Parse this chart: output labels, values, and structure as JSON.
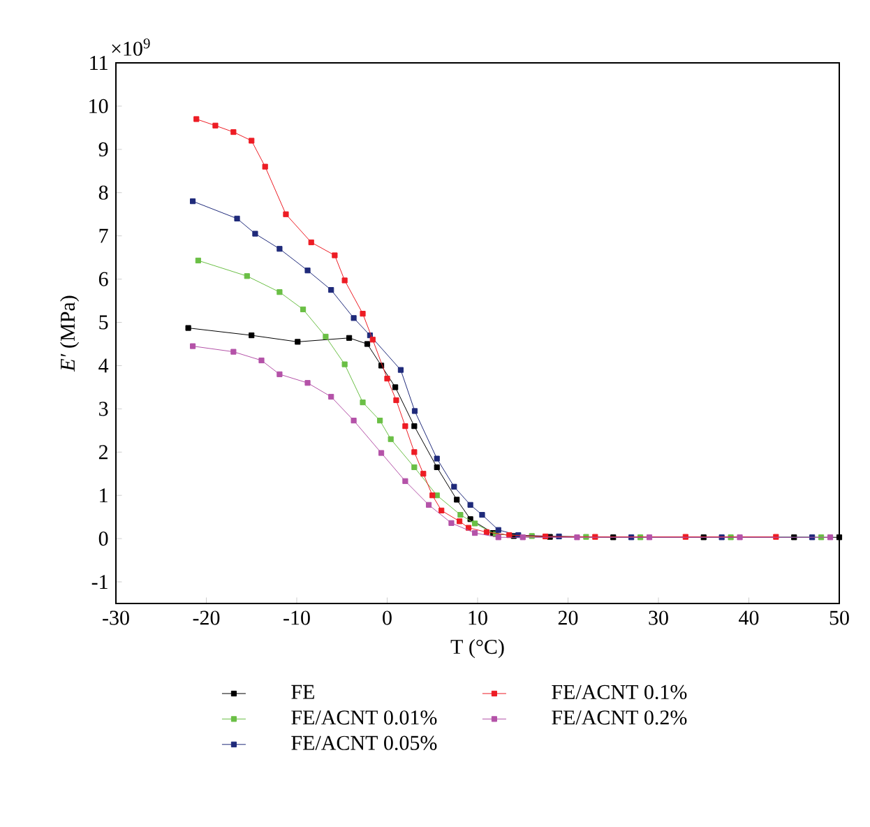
{
  "chart_data": {
    "type": "line",
    "xlabel": "T (°C)",
    "ylabel": "*E′* (MPa)",
    "annotations": [
      "×10$^{9}$"
    ],
    "xlim": [
      -30,
      50
    ],
    "ylim": [
      -1.5,
      11
    ],
    "xticks": [
      -30,
      -20,
      -10,
      0,
      10,
      20,
      30,
      40,
      50
    ],
    "yticks": [
      -1,
      0,
      1,
      2,
      3,
      4,
      5,
      6,
      7,
      8,
      9,
      10,
      11
    ],
    "legend": "bottom",
    "marker": "square",
    "line_style": "solid",
    "series": [
      {
        "name": "FE",
        "color": "#000000",
        "x": [
          -22,
          -15,
          -9.9,
          -4.2,
          -2.2,
          -0.65,
          0.9,
          3.0,
          5.5,
          7.7,
          9.2,
          11.7,
          14,
          18,
          25,
          35,
          45,
          50
        ],
        "values": [
          4.87,
          4.7,
          4.55,
          4.64,
          4.5,
          4.0,
          3.5,
          2.6,
          1.65,
          0.9,
          0.45,
          0.13,
          0.06,
          0.04,
          0.03,
          0.03,
          0.03,
          0.03
        ]
      },
      {
        "name": "FE/ACNT 0.01%",
        "color": "#6abf45",
        "x": [
          -20.9,
          -15.5,
          -11.9,
          -9.3,
          -6.8,
          -4.7,
          -2.7,
          -0.8,
          0.4,
          3.0,
          5.5,
          8.1,
          9.7,
          12,
          16,
          22,
          28,
          38,
          48
        ],
        "values": [
          6.43,
          6.07,
          5.7,
          5.3,
          4.67,
          4.03,
          3.15,
          2.73,
          2.3,
          1.65,
          1.0,
          0.55,
          0.35,
          0.1,
          0.06,
          0.04,
          0.03,
          0.03,
          0.03
        ]
      },
      {
        "name": "FE/ACNT 0.05%",
        "color": "#1f2a7a",
        "x": [
          -21.5,
          -16.6,
          -14.6,
          -11.9,
          -8.8,
          -6.2,
          -3.7,
          -1.9,
          1.5,
          3.05,
          5.5,
          7.4,
          9.2,
          10.5,
          12.3,
          14.5,
          19,
          27,
          37,
          47
        ],
        "values": [
          7.8,
          7.4,
          7.05,
          6.7,
          6.2,
          5.75,
          5.1,
          4.7,
          3.9,
          2.95,
          1.85,
          1.2,
          0.78,
          0.55,
          0.2,
          0.08,
          0.05,
          0.03,
          0.03,
          0.03
        ]
      },
      {
        "name": "FE/ACNT 0.1%",
        "color": "#ed1c24",
        "x": [
          -21.1,
          -19,
          -17,
          -15,
          -13.5,
          -11.2,
          -8.4,
          -5.8,
          -4.7,
          -2.7,
          -1.6,
          0,
          1,
          2,
          3,
          4,
          5,
          6,
          8,
          9,
          11,
          13.5,
          17.5,
          23,
          33,
          43
        ],
        "values": [
          9.7,
          9.55,
          9.4,
          9.2,
          8.6,
          7.5,
          6.85,
          6.55,
          5.97,
          5.2,
          4.6,
          3.7,
          3.2,
          2.6,
          2.0,
          1.5,
          1.0,
          0.65,
          0.4,
          0.25,
          0.15,
          0.08,
          0.05,
          0.04,
          0.04,
          0.04
        ]
      },
      {
        "name": "FE/ACNT 0.2%",
        "color": "#b452a8",
        "x": [
          -21.5,
          -17,
          -13.9,
          -11.9,
          -8.8,
          -6.2,
          -3.7,
          -0.65,
          2.0,
          4.6,
          7.1,
          9.7,
          12.3,
          15,
          21,
          29,
          39,
          49
        ],
        "values": [
          4.45,
          4.32,
          4.12,
          3.8,
          3.6,
          3.28,
          2.73,
          1.98,
          1.33,
          0.78,
          0.36,
          0.13,
          0.03,
          0.03,
          0.03,
          0.03,
          0.03,
          0.03
        ]
      }
    ]
  }
}
